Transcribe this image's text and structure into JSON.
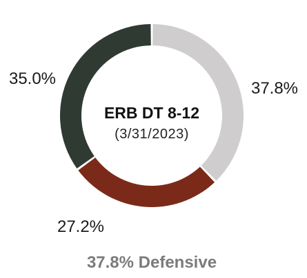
{
  "chart_data": {
    "type": "pie",
    "style": "donut",
    "title": "ERB DT 8-12",
    "subtitle": "(3/31/2023)",
    "slices": [
      {
        "label_text": "37.8%",
        "value": 37.8,
        "color": "#cfcdcd"
      },
      {
        "label_text": "27.2%",
        "value": 27.2,
        "color": "#7b2a1a"
      },
      {
        "label_text": "35.0%",
        "value": 35.0,
        "color": "#2f3a33"
      }
    ],
    "start_angle_deg": 0,
    "direction": "clockwise",
    "footer": "37.8% Defensive"
  }
}
